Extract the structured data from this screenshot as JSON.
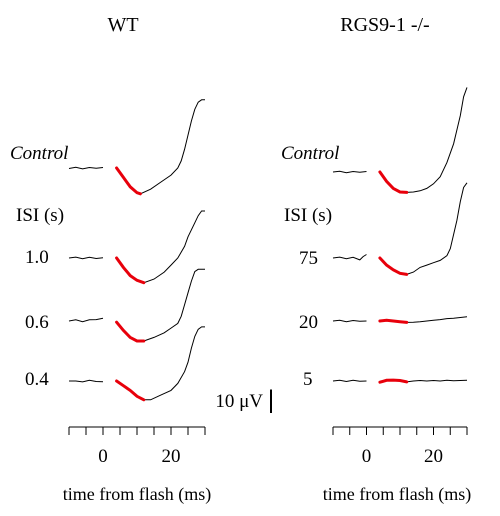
{
  "chart_data": {
    "type": "line",
    "panels": [
      {
        "title": "WT",
        "xlabel": "time from flash (ms)",
        "xlim": [
          -10,
          30
        ],
        "xticks": [
          -10,
          -5,
          0,
          5,
          10,
          15,
          20,
          25,
          30
        ],
        "xtick_labels": [
          {
            "x": 0,
            "label": "0"
          },
          {
            "x": 20,
            "label": "20"
          }
        ],
        "control_label": "Control",
        "isi_header": "ISI (s)",
        "traces": [
          {
            "label": "",
            "baseline": [
              [
                -10,
                -0.2
              ],
              [
                -8,
                0.3
              ],
              [
                -6,
                -0.4
              ],
              [
                -4,
                0.2
              ],
              [
                -2,
                -0.1
              ],
              [
                0,
                0.2
              ]
            ],
            "response": [
              [
                4,
                0
              ],
              [
                6,
                -4
              ],
              [
                8,
                -8
              ],
              [
                10,
                -10.5
              ],
              [
                11,
                -11
              ],
              [
                14,
                -9
              ],
              [
                17,
                -6
              ],
              [
                20,
                -3
              ],
              [
                22,
                0
              ],
              [
                23,
                3
              ],
              [
                24,
                8
              ],
              [
                25,
                14
              ],
              [
                26,
                20
              ],
              [
                27,
                25
              ],
              [
                28,
                28
              ],
              [
                29,
                29
              ],
              [
                30,
                29
              ]
            ]
          },
          {
            "label": "1.0",
            "baseline": [
              [
                -10,
                0
              ],
              [
                -8,
                0.4
              ],
              [
                -6,
                -0.3
              ],
              [
                -4,
                0.3
              ],
              [
                -2,
                -0.2
              ],
              [
                0,
                0.1
              ]
            ],
            "response": [
              [
                4,
                0
              ],
              [
                6,
                -4
              ],
              [
                8,
                -7.5
              ],
              [
                10,
                -9.5
              ],
              [
                12,
                -10.5
              ],
              [
                15,
                -9
              ],
              [
                18,
                -6
              ],
              [
                20,
                -3
              ],
              [
                22,
                0
              ],
              [
                24,
                5
              ],
              [
                25,
                9
              ],
              [
                26,
                12
              ],
              [
                27,
                15
              ],
              [
                28,
                18
              ],
              [
                29,
                20
              ],
              [
                30,
                20
              ]
            ]
          },
          {
            "label": "0.6",
            "baseline": [
              [
                -10,
                0
              ],
              [
                -8,
                0.5
              ],
              [
                -6,
                -0.3
              ],
              [
                -4,
                0.5
              ],
              [
                -2,
                0.6
              ],
              [
                0,
                1.2
              ]
            ],
            "response": [
              [
                4,
                -0.5
              ],
              [
                6,
                -4
              ],
              [
                8,
                -7
              ],
              [
                10,
                -8.5
              ],
              [
                12,
                -8.5
              ],
              [
                15,
                -7
              ],
              [
                18,
                -5
              ],
              [
                20,
                -3
              ],
              [
                22,
                -1
              ],
              [
                23,
                2
              ],
              [
                24,
                7
              ],
              [
                25,
                12
              ],
              [
                26,
                17
              ],
              [
                27,
                21
              ],
              [
                28,
                22
              ],
              [
                29,
                22
              ],
              [
                30,
                22
              ]
            ]
          },
          {
            "label": "0.4",
            "baseline": [
              [
                -10,
                0
              ],
              [
                -8,
                0
              ],
              [
                -6,
                -0.4
              ],
              [
                -4,
                0.3
              ],
              [
                -2,
                -0.2
              ],
              [
                0,
                -0.3
              ]
            ],
            "response": [
              [
                4,
                0
              ],
              [
                6,
                -2
              ],
              [
                8,
                -4
              ],
              [
                10,
                -6.5
              ],
              [
                12,
                -8
              ],
              [
                14,
                -8
              ],
              [
                17,
                -6
              ],
              [
                20,
                -4
              ],
              [
                22,
                -1
              ],
              [
                24,
                4
              ],
              [
                25,
                8
              ],
              [
                26,
                14
              ],
              [
                27,
                19
              ],
              [
                28,
                22
              ],
              [
                29,
                23
              ],
              [
                30,
                23
              ]
            ]
          }
        ]
      },
      {
        "title": "RGS9-1 -/-",
        "xlabel": "time from flash (ms)",
        "xlim": [
          -10,
          30
        ],
        "xticks": [
          -10,
          -5,
          0,
          5,
          10,
          15,
          20,
          25,
          30
        ],
        "xtick_labels": [
          {
            "x": 0,
            "label": "0"
          },
          {
            "x": 20,
            "label": "20"
          }
        ],
        "control_label": "Control",
        "isi_header": "ISI (s)",
        "traces": [
          {
            "label": "",
            "baseline": [
              [
                -10,
                0
              ],
              [
                -8,
                0.3
              ],
              [
                -6,
                -0.3
              ],
              [
                -4,
                0.2
              ],
              [
                -2,
                -0.1
              ],
              [
                0,
                0.2
              ]
            ],
            "response": [
              [
                4,
                0
              ],
              [
                6,
                -4
              ],
              [
                8,
                -7
              ],
              [
                10,
                -8.5
              ],
              [
                12,
                -8.7
              ],
              [
                14,
                -8.5
              ],
              [
                16,
                -8
              ],
              [
                18,
                -7
              ],
              [
                20,
                -5
              ],
              [
                22,
                -2
              ],
              [
                24,
                4
              ],
              [
                26,
                12
              ],
              [
                28,
                24
              ],
              [
                29,
                32
              ],
              [
                30,
                36
              ]
            ]
          },
          {
            "label": "75",
            "baseline": [
              [
                -10,
                0
              ],
              [
                -8,
                0.4
              ],
              [
                -6,
                -0.3
              ],
              [
                -4,
                0.3
              ],
              [
                -2,
                -0.8
              ],
              [
                -1,
                0.6
              ],
              [
                0,
                1.5
              ]
            ],
            "response": [
              [
                4,
                0
              ],
              [
                6,
                -3
              ],
              [
                8,
                -5
              ],
              [
                10,
                -6.5
              ],
              [
                12,
                -7
              ],
              [
                14,
                -6
              ],
              [
                16,
                -4
              ],
              [
                18,
                -3
              ],
              [
                20,
                -2
              ],
              [
                22,
                -1
              ],
              [
                24,
                1
              ],
              [
                25,
                4
              ],
              [
                26,
                10
              ],
              [
                27,
                16
              ],
              [
                28,
                24
              ],
              [
                29,
                30
              ],
              [
                30,
                32
              ]
            ]
          },
          {
            "label": "20",
            "baseline": [
              [
                -10,
                0
              ],
              [
                -8,
                0.3
              ],
              [
                -6,
                -0.3
              ],
              [
                -4,
                0.2
              ],
              [
                -2,
                -0.1
              ],
              [
                0,
                0
              ]
            ],
            "response": [
              [
                4,
                0
              ],
              [
                6,
                0.3
              ],
              [
                8,
                0
              ],
              [
                10,
                -0.3
              ],
              [
                12,
                -0.6
              ],
              [
                14,
                -0.5
              ],
              [
                16,
                -0.3
              ],
              [
                18,
                0
              ],
              [
                20,
                0.3
              ],
              [
                22,
                0.6
              ],
              [
                24,
                1
              ],
              [
                26,
                1.2
              ],
              [
                28,
                1.5
              ],
              [
                30,
                1.8
              ]
            ]
          },
          {
            "label": "5",
            "baseline": [
              [
                -10,
                0
              ],
              [
                -8,
                0.3
              ],
              [
                -6,
                -0.2
              ],
              [
                -4,
                0.3
              ],
              [
                -2,
                -0.1
              ],
              [
                0,
                0
              ]
            ],
            "response": [
              [
                4,
                -0.5
              ],
              [
                6,
                0.3
              ],
              [
                8,
                0.4
              ],
              [
                10,
                0.2
              ],
              [
                12,
                -0.4
              ],
              [
                14,
                0
              ],
              [
                16,
                0.2
              ],
              [
                18,
                0
              ],
              [
                20,
                0.2
              ],
              [
                22,
                0
              ],
              [
                24,
                0.3
              ],
              [
                26,
                0.1
              ],
              [
                28,
                0.2
              ],
              [
                30,
                0.3
              ]
            ]
          }
        ]
      }
    ],
    "scale_bar_label": "10 μV",
    "scale_bar_value_uv": 10,
    "highlight_color": "#e8000b",
    "trace_color": "#000000"
  }
}
